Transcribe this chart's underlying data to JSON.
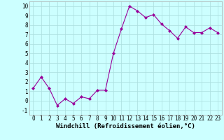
{
  "x": [
    0,
    1,
    2,
    3,
    4,
    5,
    6,
    7,
    8,
    9,
    10,
    11,
    12,
    13,
    14,
    15,
    16,
    17,
    18,
    19,
    20,
    21,
    22,
    23
  ],
  "y": [
    1.3,
    2.5,
    1.3,
    -0.5,
    0.2,
    -0.3,
    0.4,
    0.2,
    1.1,
    1.1,
    5.0,
    7.6,
    10.0,
    9.5,
    8.8,
    9.1,
    8.1,
    7.4,
    6.6,
    7.8,
    7.2,
    7.2,
    7.7,
    7.2
  ],
  "line_color": "#990099",
  "marker_color": "#990099",
  "bg_color": "#ccffff",
  "grid_color": "#aadddd",
  "xlabel": "Windchill (Refroidissement éolien,°C)",
  "xlim": [
    -0.5,
    23.5
  ],
  "ylim": [
    -1.5,
    10.5
  ],
  "yticks": [
    -1,
    0,
    1,
    2,
    3,
    4,
    5,
    6,
    7,
    8,
    9,
    10
  ],
  "xticks": [
    0,
    1,
    2,
    3,
    4,
    5,
    6,
    7,
    8,
    9,
    10,
    11,
    12,
    13,
    14,
    15,
    16,
    17,
    18,
    19,
    20,
    21,
    22,
    23
  ],
  "tick_fontsize": 5.5,
  "xlabel_fontsize": 6.5
}
